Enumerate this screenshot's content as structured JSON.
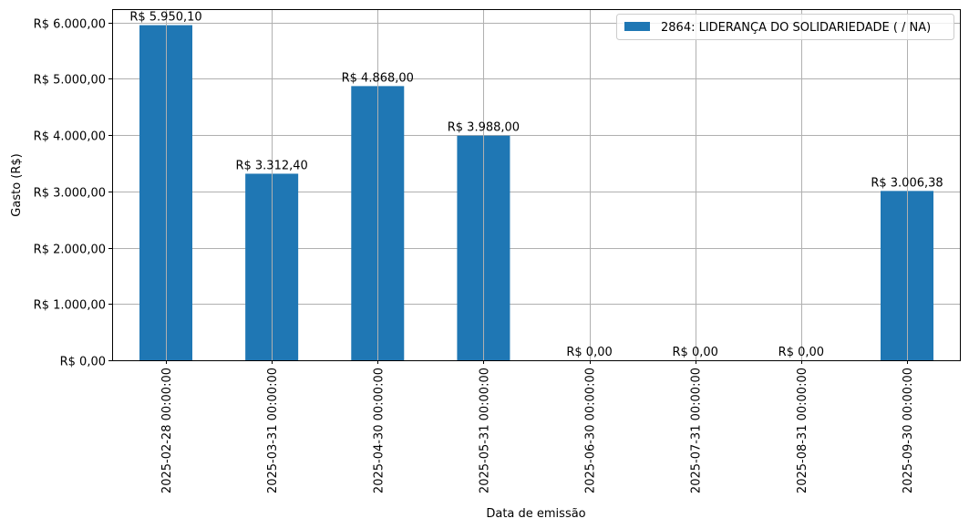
{
  "chart_data": {
    "type": "bar",
    "title": "",
    "xlabel": "Data de emissão",
    "ylabel": "Gasto (R$)",
    "ylim": [
      0,
      6250
    ],
    "grid": true,
    "legend_position": "upper right",
    "categories": [
      "2025-02-28 00:00:00",
      "2025-03-31 00:00:00",
      "2025-04-30 00:00:00",
      "2025-05-31 00:00:00",
      "2025-06-30 00:00:00",
      "2025-07-31 00:00:00",
      "2025-08-31 00:00:00",
      "2025-09-30 00:00:00"
    ],
    "series": [
      {
        "name": "2864: LIDERANÇA DO SOLIDARIEDADE ( / NA)",
        "color": "#1f77b4",
        "values": [
          5950.1,
          3312.4,
          4868.0,
          3988.0,
          0,
          0,
          0,
          3006.38
        ],
        "value_labels": [
          "R$ 5.950,10",
          "R$ 3.312,40",
          "R$ 4.868,00",
          "R$ 3.988,00",
          "R$ 0,00",
          "R$ 0,00",
          "R$ 0,00",
          "R$ 3.006,38"
        ]
      }
    ],
    "yticks": [
      0,
      1000,
      2000,
      3000,
      4000,
      5000,
      6000
    ],
    "ytick_labels": [
      "R$ 0,00",
      "R$ 1.000,00",
      "R$ 2.000,00",
      "R$ 3.000,00",
      "R$ 4.000,00",
      "R$ 5.000,00",
      "R$ 6.000,00"
    ]
  }
}
